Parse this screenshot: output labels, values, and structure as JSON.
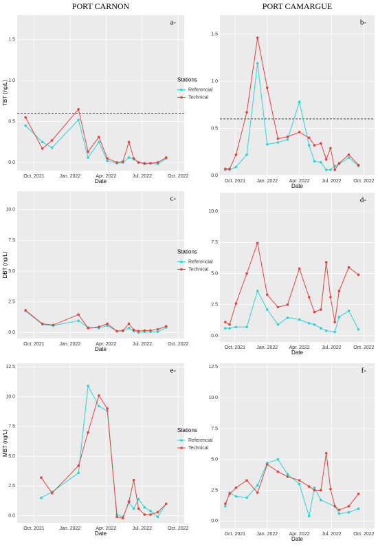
{
  "chart_data": [
    {
      "type": "line",
      "title": "PORT CARNON",
      "panel_label": "a-",
      "ylabel": "TBT (ng/L)",
      "xlabel": "Date",
      "grid": true,
      "hline": 0.6,
      "xlim": [
        -1.4,
        12.5
      ],
      "xticks": [
        {
          "value": 0,
          "label": "Oct. 2021"
        },
        {
          "value": 3,
          "label": "Jan. 2022"
        },
        {
          "value": 6,
          "label": "Apr. 2022"
        },
        {
          "value": 9,
          "label": "Jul. 2022"
        },
        {
          "value": 12,
          "label": "Oct. 2022"
        }
      ],
      "ylim": [
        -0.1,
        1.8
      ],
      "yticks": [
        {
          "value": 0,
          "label": "0.0"
        },
        {
          "value": 0.5,
          "label": "0.5"
        },
        {
          "value": 1,
          "label": "1.0"
        },
        {
          "value": 1.5,
          "label": "1.5"
        }
      ],
      "series": [
        {
          "color": "#2ad3d8",
          "x": [
            -0.7,
            0.7,
            1.5,
            3.7,
            4.5,
            5.4,
            6.1,
            6.9,
            7.4,
            7.9,
            8.3,
            8.7,
            9.2,
            9.7,
            10.3,
            11
          ],
          "values": [
            0.45,
            0.25,
            0.18,
            0.52,
            0.06,
            0.25,
            0.02,
            -0.01,
            0.0,
            0.06,
            0.04,
            0.0,
            -0.02,
            -0.01,
            -0.02,
            0.05
          ]
        },
        {
          "color": "#e8403a",
          "x": [
            -0.7,
            0.7,
            1.5,
            3.7,
            4.5,
            5.4,
            6.1,
            6.9,
            7.4,
            7.9,
            8.3,
            8.7,
            9.2,
            9.7,
            10.3,
            11
          ],
          "values": [
            0.55,
            0.17,
            0.27,
            0.65,
            0.13,
            0.31,
            0.05,
            0.0,
            0.01,
            0.25,
            0.05,
            0.0,
            -0.01,
            -0.01,
            0.0,
            0.06
          ]
        }
      ]
    },
    {
      "type": "line",
      "title": "PORT CAMARGUE",
      "panel_label": "b-",
      "xlabel": "Date",
      "legend_title": "Stations",
      "grid": true,
      "hline": 0.6,
      "xlim": [
        -1.4,
        13
      ],
      "xticks": [
        {
          "value": 0,
          "label": "Oct. 2021"
        },
        {
          "value": 3,
          "label": "Jan. 2022"
        },
        {
          "value": 6,
          "label": "Apr. 2022"
        },
        {
          "value": 9,
          "label": "Jul. 2022"
        },
        {
          "value": 12,
          "label": "Oct. 2022"
        }
      ],
      "ylim": [
        0,
        1.7
      ],
      "yticks": [
        {
          "value": 0,
          "label": "0.0"
        },
        {
          "value": 0.5,
          "label": "0.5"
        },
        {
          "value": 1,
          "label": "1.0"
        },
        {
          "value": 1.5,
          "label": "1.5"
        }
      ],
      "series": [
        {
          "name": "Referencial",
          "color": "#2ad3d8",
          "x": [
            -0.9,
            -0.5,
            0.1,
            1.1,
            2.1,
            3,
            4,
            4.9,
            6,
            6.9,
            7.4,
            8,
            8.5,
            8.9,
            9.3,
            9.7,
            10.6,
            11.5
          ],
          "values": [
            0.06,
            0.06,
            0.09,
            0.22,
            1.19,
            0.33,
            0.35,
            0.38,
            0.78,
            0.32,
            0.15,
            0.14,
            0.06,
            0.06,
            0.1,
            0.12,
            0.19,
            0.1
          ]
        },
        {
          "name": "Technical",
          "color": "#e8403a",
          "x": [
            -0.9,
            -0.5,
            0.1,
            1.1,
            2.1,
            3,
            4,
            4.9,
            6,
            6.9,
            7.4,
            8,
            8.5,
            8.9,
            9.3,
            9.7,
            10.6,
            11.5
          ],
          "values": [
            0.07,
            0.07,
            0.22,
            0.67,
            1.46,
            0.93,
            0.39,
            0.41,
            0.46,
            0.4,
            0.32,
            0.34,
            0.17,
            0.29,
            0.06,
            0.13,
            0.22,
            0.11
          ]
        }
      ]
    },
    {
      "type": "line",
      "panel_label": "c-",
      "ylabel": "DBT (ng/L)",
      "xlabel": "Date",
      "grid": true,
      "xlim": [
        -1.4,
        12.5
      ],
      "xticks": [
        {
          "value": 0,
          "label": "Oct. 2021"
        },
        {
          "value": 3,
          "label": "Jan. 2022"
        },
        {
          "value": 6,
          "label": "Apr. 2022"
        },
        {
          "value": 9,
          "label": "Jul. 2022"
        },
        {
          "value": 12,
          "label": "Oct. 2022"
        }
      ],
      "ylim": [
        -0.5,
        11.5
      ],
      "yticks": [
        {
          "value": 0,
          "label": "0.0"
        },
        {
          "value": 2.5,
          "label": "2.5"
        },
        {
          "value": 5,
          "label": "5.0"
        },
        {
          "value": 7.5,
          "label": "7.5"
        },
        {
          "value": 10,
          "label": "10.0"
        }
      ],
      "series": [
        {
          "color": "#2ad3d8",
          "x": [
            -0.7,
            0.7,
            1.6,
            3.7,
            4.5,
            5.4,
            6.1,
            6.9,
            7.4,
            7.9,
            8.3,
            8.7,
            9.2,
            9.7,
            10.3,
            11
          ],
          "values": [
            1.75,
            0.65,
            0.55,
            0.95,
            0.4,
            0.35,
            0.55,
            0.1,
            0.1,
            0.35,
            0.1,
            0,
            0.05,
            0.05,
            0.05,
            0.4
          ]
        },
        {
          "color": "#e8403a",
          "x": [
            -0.7,
            0.7,
            1.6,
            3.7,
            4.5,
            5.4,
            6.1,
            6.9,
            7.4,
            7.9,
            8.3,
            8.7,
            9.2,
            9.7,
            10.3,
            11
          ],
          "values": [
            1.8,
            0.7,
            0.6,
            1.45,
            0.35,
            0.45,
            0.7,
            0.1,
            0.15,
            0.7,
            0.2,
            0.1,
            0.15,
            0.15,
            0.25,
            0.5
          ]
        }
      ]
    },
    {
      "type": "line",
      "panel_label": "d-",
      "xlabel": "Date",
      "legend_title": "Stations",
      "grid": true,
      "xlim": [
        -1.4,
        13
      ],
      "xticks": [
        {
          "value": 0,
          "label": "Oct. 2021"
        },
        {
          "value": 3,
          "label": "Jan. 2022"
        },
        {
          "value": 6,
          "label": "Apr. 2022"
        },
        {
          "value": 9,
          "label": "Jul. 2022"
        },
        {
          "value": 12,
          "label": "Oct. 2022"
        }
      ],
      "ylim": [
        -0.5,
        11.5
      ],
      "yticks": [
        {
          "value": 0,
          "label": "0.0"
        },
        {
          "value": 2.5,
          "label": "2.5"
        },
        {
          "value": 5,
          "label": "5.0"
        },
        {
          "value": 7.5,
          "label": "7.5"
        },
        {
          "value": 10,
          "label": "10.0"
        }
      ],
      "series": [
        {
          "name": "Referencial",
          "color": "#2ad3d8",
          "x": [
            -0.9,
            -0.5,
            0.1,
            1.1,
            2.1,
            3,
            4,
            4.9,
            6,
            6.9,
            7.4,
            8,
            8.5,
            9.3,
            9.7,
            10.6,
            11.5
          ],
          "values": [
            0.6,
            0.6,
            0.7,
            0.7,
            3.6,
            2.1,
            0.9,
            1.45,
            1.3,
            1.0,
            0.9,
            0.6,
            0.4,
            0.3,
            1.5,
            2.0,
            0.5
          ]
        },
        {
          "name": "Technical",
          "color": "#e8403a",
          "x": [
            -0.9,
            -0.5,
            0.1,
            1.1,
            2.1,
            3,
            4,
            4.9,
            6,
            6.9,
            7.4,
            8,
            8.5,
            8.9,
            9.3,
            9.7,
            10.6,
            11.5
          ],
          "values": [
            1.1,
            0.9,
            2.6,
            5.0,
            7.45,
            3.3,
            2.3,
            2.5,
            5.4,
            3.1,
            1.9,
            2.1,
            5.9,
            3.1,
            1.1,
            3.6,
            5.5,
            4.9
          ]
        }
      ]
    },
    {
      "type": "line",
      "panel_label": "e-",
      "ylabel": "MBT (ng/L)",
      "xlabel": "Date",
      "grid": true,
      "xlim": [
        -1.4,
        12.5
      ],
      "xticks": [
        {
          "value": 0,
          "label": "Oct. 2021"
        },
        {
          "value": 3,
          "label": "Jan. 2022"
        },
        {
          "value": 6,
          "label": "Apr. 2022"
        },
        {
          "value": 9,
          "label": "Jul. 2022"
        },
        {
          "value": 12,
          "label": "Oct. 2022"
        }
      ],
      "ylim": [
        -0.6,
        12.8
      ],
      "yticks": [
        {
          "value": 0,
          "label": "0.0"
        },
        {
          "value": 2.5,
          "label": "2.5"
        },
        {
          "value": 5,
          "label": "5.0"
        },
        {
          "value": 7.5,
          "label": "7.5"
        },
        {
          "value": 10,
          "label": "10.0"
        },
        {
          "value": 12.5,
          "label": "12.5"
        }
      ],
      "series": [
        {
          "color": "#2ad3d8",
          "x": [
            0.6,
            1.5,
            3.7,
            4.5,
            5.4,
            6.1,
            6.9,
            7.4,
            7.9,
            8.3,
            8.7,
            9.2,
            9.7,
            10.3,
            11
          ],
          "values": [
            1.5,
            2.0,
            3.6,
            10.9,
            9.2,
            8.8,
            0.1,
            -0.1,
            1.1,
            0.6,
            1.4,
            0.7,
            0.4,
            -0.1,
            1.0
          ]
        },
        {
          "color": "#e8403a",
          "x": [
            0.6,
            1.5,
            3.7,
            4.5,
            5.4,
            6.1,
            6.9,
            7.4,
            7.9,
            8.3,
            8.7,
            9.2,
            9.7,
            10.3,
            11
          ],
          "values": [
            3.2,
            1.9,
            4.2,
            7.0,
            10.1,
            9.0,
            -0.1,
            -0.2,
            1.2,
            3.0,
            0.6,
            0.1,
            0.1,
            0.3,
            1.0
          ]
        }
      ]
    },
    {
      "type": "line",
      "panel_label": "f-",
      "xlabel": "Date",
      "legend_title": "Stations",
      "grid": true,
      "xlim": [
        -1.4,
        13
      ],
      "xticks": [
        {
          "value": 0,
          "label": "Oct. 2021"
        },
        {
          "value": 3,
          "label": "Jan. 2022"
        },
        {
          "value": 6,
          "label": "Apr. 2022"
        },
        {
          "value": 9,
          "label": "Jul. 2022"
        },
        {
          "value": 12,
          "label": "Oct. 2022"
        }
      ],
      "ylim": [
        -0.6,
        12.8
      ],
      "yticks": [
        {
          "value": 0,
          "label": "0.0"
        },
        {
          "value": 2.5,
          "label": "2.5"
        },
        {
          "value": 5,
          "label": "5.0"
        },
        {
          "value": 7.5,
          "label": "7.5"
        },
        {
          "value": 10,
          "label": "10.0"
        },
        {
          "value": 12.5,
          "label": "12.5"
        }
      ],
      "series": [
        {
          "name": "Referencial",
          "color": "#2ad3d8",
          "x": [
            -0.9,
            -0.5,
            0.1,
            1.1,
            2.1,
            3,
            4,
            4.9,
            6,
            6.9,
            7.4,
            8,
            9.3,
            9.7,
            10.6,
            11.5
          ],
          "values": [
            1.2,
            2.3,
            2.0,
            1.9,
            2.9,
            4.7,
            5.0,
            3.8,
            3.0,
            0.4,
            2.7,
            1.7,
            1.2,
            0.6,
            0.7,
            1.0
          ]
        },
        {
          "name": "Technical",
          "color": "#e8403a",
          "x": [
            -0.9,
            -0.5,
            0.1,
            1.1,
            2.1,
            3,
            4,
            4.9,
            6,
            6.9,
            7.4,
            8,
            8.5,
            8.9,
            9.3,
            9.7,
            10.6,
            11.5
          ],
          "values": [
            1.4,
            2.2,
            2.7,
            3.3,
            2.3,
            4.6,
            4.0,
            3.6,
            3.3,
            2.8,
            2.5,
            2.5,
            5.5,
            2.6,
            1.2,
            0.9,
            1.2,
            2.2
          ]
        }
      ]
    }
  ]
}
